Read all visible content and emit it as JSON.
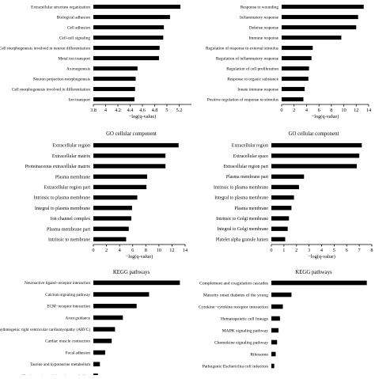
{
  "colors": {
    "bar": "#000000",
    "axis": "#000000",
    "background": "#ffffff"
  },
  "chart_data": [
    {
      "type": "bar",
      "orientation": "horizontal",
      "title": "",
      "xlabel": "−log(q-value)",
      "xlim": [
        3.8,
        5.4
      ],
      "xticks": [
        3.8,
        4,
        4.2,
        4.4,
        4.6,
        4.8,
        5,
        5.2
      ],
      "categories": [
        "Extracellular structure organization",
        "Biological adhesion",
        "Cell adhesion",
        "Cell-cell signaling",
        "Cell morphogenesis involved in neuron differentiation",
        "Metal ion transport",
        "Axonogenesis",
        "Neuron projection morphogenesis",
        "Cell morphogenesis involved in differentiation",
        "Ion transport"
      ],
      "values": [
        5.22,
        5.05,
        4.95,
        4.94,
        4.88,
        4.87,
        4.52,
        4.49,
        4.48,
        4.47
      ]
    },
    {
      "type": "bar",
      "orientation": "horizontal",
      "title": "",
      "xlabel": "−log(q-value)",
      "xlim": [
        0,
        14
      ],
      "xticks": [
        0,
        2,
        4,
        6,
        8,
        10,
        12,
        14
      ],
      "categories": [
        "Response to wounding",
        "Inflammatory response",
        "Defense response",
        "Immune response",
        "Regulation of response to external stimulus",
        "Regulation of inflammatory response",
        "Regulation of cell proliferation",
        "Response to organic substance",
        "Innate immune response",
        "Positive regulation of response to stimulus"
      ],
      "values": [
        13.2,
        12.3,
        12.0,
        9.6,
        5.0,
        4.8,
        4.4,
        4.3,
        3.7,
        3.5
      ]
    },
    {
      "type": "bar",
      "orientation": "horizontal",
      "title": "GO cellular component",
      "xlabel": "−log(q-value)",
      "xlim": [
        0,
        14
      ],
      "xticks": [
        0,
        2,
        4,
        6,
        8,
        10,
        12,
        14
      ],
      "categories": [
        "Extracellular region",
        "Extracellular matrix",
        "Proteinaceous extracellular matrix",
        "Plasma membrane",
        "Extracellular region part",
        "Intrinsic to plasma membrane",
        "Integral to plasma membrane",
        "Ion channel complex",
        "Plasma membrane part",
        "Intrinsic to membrane"
      ],
      "values": [
        13.0,
        11.0,
        11.0,
        8.2,
        8.1,
        6.7,
        5.9,
        5.8,
        5.4,
        5.0
      ]
    },
    {
      "type": "bar",
      "orientation": "horizontal",
      "title": "GO cellular component",
      "xlabel": "−log(q-value)",
      "xlim": [
        0,
        8
      ],
      "xticks": [
        0,
        1,
        2,
        3,
        4,
        5,
        6,
        7,
        8
      ],
      "categories": [
        "Extracellular region",
        "Extracellular space",
        "Extracellular region part",
        "Plasma membrane part",
        "Intrinsic to plasma membrane",
        "Integral to plasma membrane",
        "Plasma membrane",
        "Intrinsic to Golgi membrane",
        "Integral to Golgi membrane",
        "Platelet alpha granule lumen"
      ],
      "values": [
        7.2,
        7.0,
        6.8,
        2.6,
        2.2,
        1.8,
        1.6,
        1.4,
        1.3,
        1.1
      ]
    },
    {
      "type": "bar",
      "orientation": "horizontal",
      "title": "KEGG pathways",
      "xlabel": "",
      "xlim": [
        0,
        14
      ],
      "categories": [
        "Neuroactive ligand−receptor interaction",
        "Calcium signaling pathway",
        "ECM−receptor interaction",
        "Axon guidance",
        "Arrhythmogenic right ventricular cardiomyopathy (ARVC)",
        "Cardiac muscle contraction",
        "Focal adhesion",
        "Taurine and hypotaurine metabolism",
        "Glycine, serine and threonine metabolism"
      ],
      "values": [
        13.2,
        8.5,
        6.6,
        4.5,
        3.3,
        2.8,
        1.8,
        1.0,
        0.7
      ]
    },
    {
      "type": "bar",
      "orientation": "horizontal",
      "title": "KEGG pathways",
      "xlabel": "",
      "xlim": [
        0,
        14
      ],
      "categories": [
        "Complement and coagulation cascades",
        "Maturity onset diabetes of the young",
        "Cytokine−cytokine receptor interaction",
        "Hematopoietic cell lineage",
        "MAPK signaling pathway",
        "Chemokine signaling pathway",
        "Ribosome",
        "Pathogenic Escherichia coli infection"
      ],
      "values": [
        13.3,
        2.8,
        1.6,
        1.2,
        1.0,
        0.8,
        0.6,
        0.4
      ]
    }
  ]
}
